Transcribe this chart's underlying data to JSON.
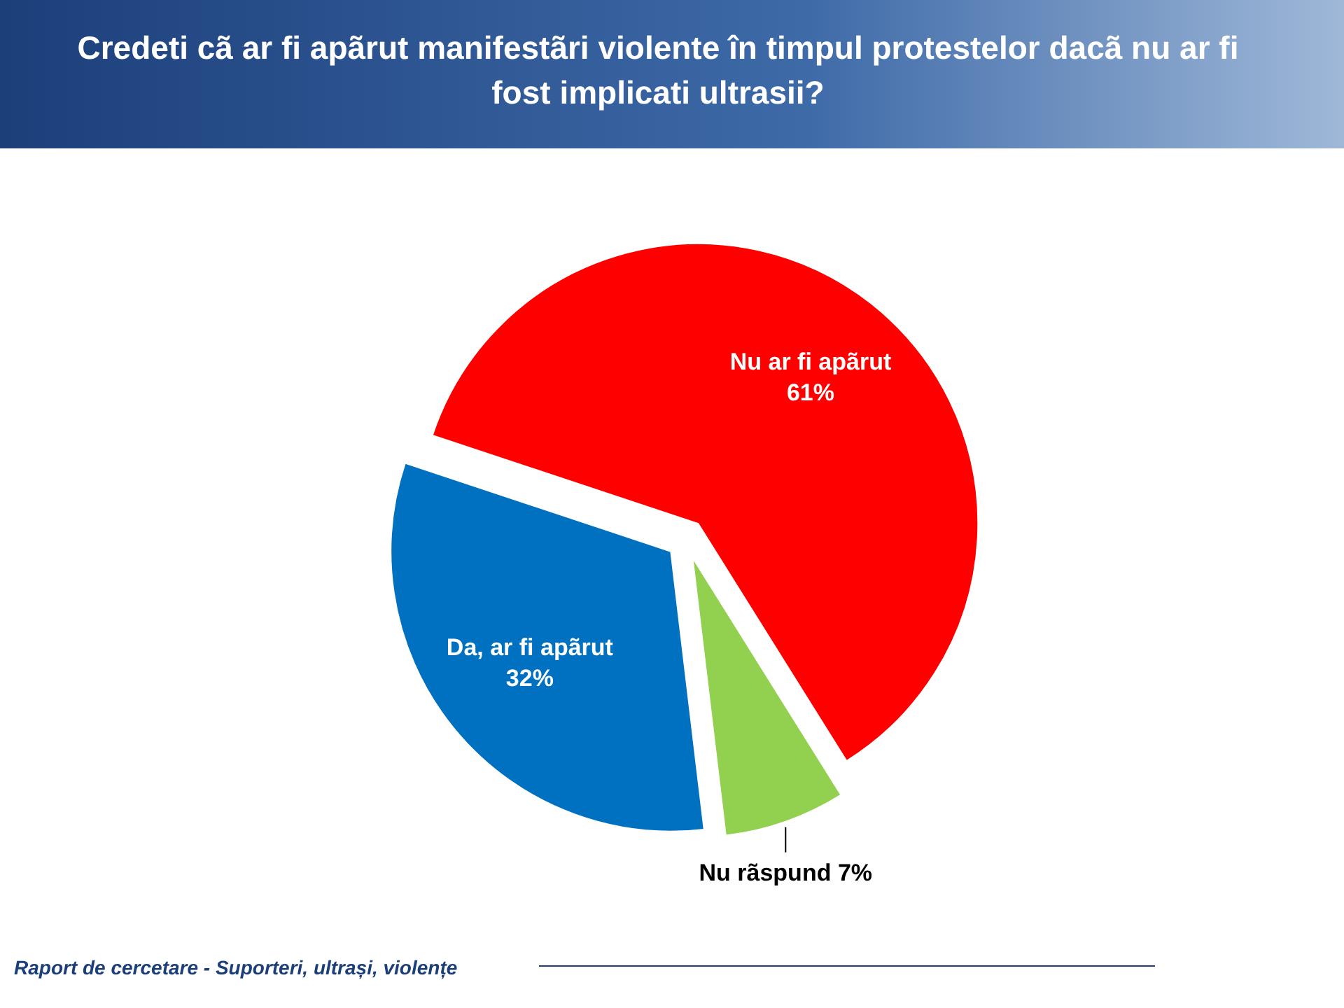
{
  "chart_data": {
    "type": "pie",
    "title": "Credeti cã ar fi apãrut manifestãri violente în timpul protestelor dacã nu ar fi fost implicati ultrasii?",
    "categories": [
      "Nu ar fi apãrut",
      "Nu rãspund",
      "Da, ar fi apãrut"
    ],
    "values": [
      61,
      7,
      32
    ],
    "colors": [
      "#ff0000",
      "#92d050",
      "#0070c0"
    ],
    "value_labels": [
      "61%",
      "7%",
      "32%"
    ],
    "annotations": [
      "Raport de cercetare - Suporteri, ultrași, violențe"
    ]
  }
}
